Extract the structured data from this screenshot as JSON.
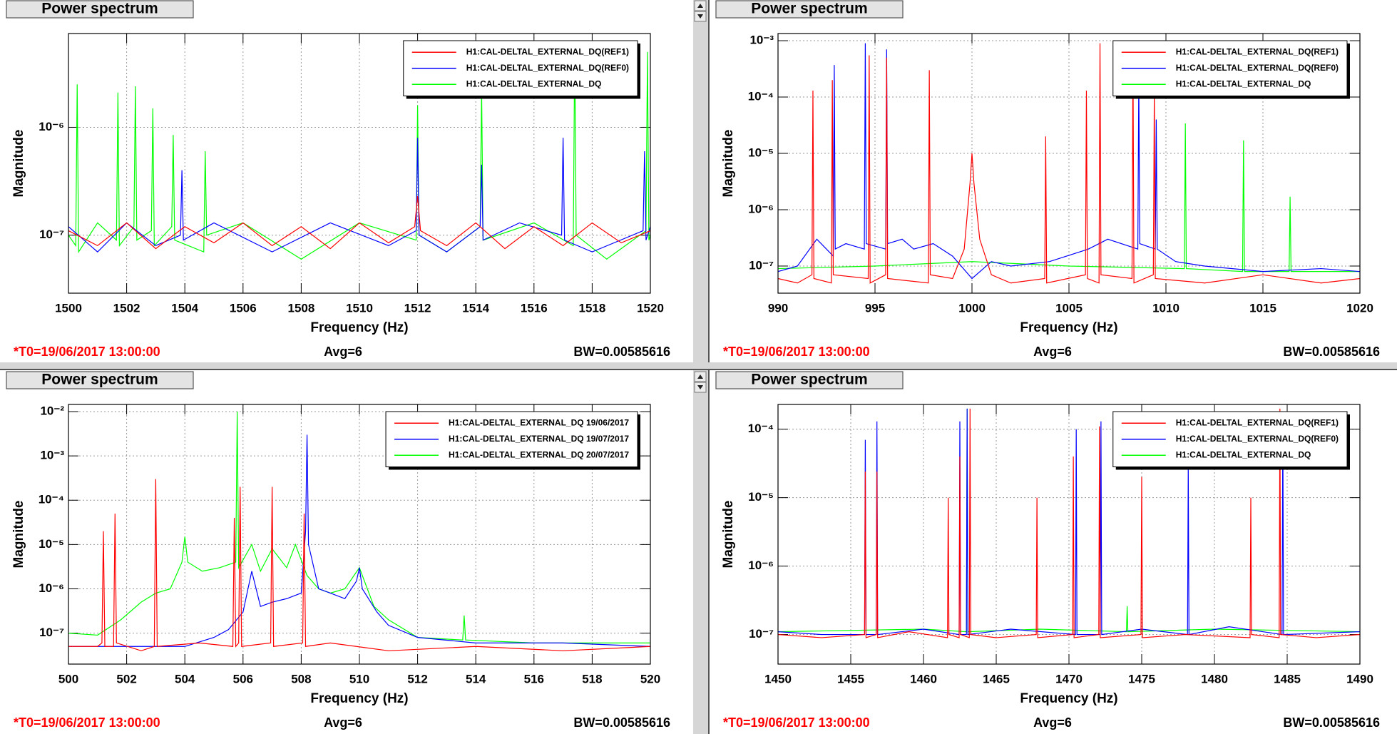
{
  "chart_data": [
    {
      "type": "line",
      "panel_title": "Power spectrum",
      "xlabel": "Frequency (Hz)",
      "ylabel": "Magnitude",
      "xlim": [
        1500,
        1520
      ],
      "xticks": [
        1500,
        1502,
        1504,
        1506,
        1508,
        1510,
        1512,
        1514,
        1516,
        1518,
        1520
      ],
      "ylim": [
        2.9e-08,
        7.4e-06
      ],
      "log_y": true,
      "yticks": [
        {
          "value": 1e-07,
          "label": "10⁻⁷"
        },
        {
          "value": 1e-06,
          "label": "10⁻⁶"
        }
      ],
      "grid": true,
      "legend": "upper right",
      "series": [
        {
          "name": "H1:CAL-DELTAL_EXTERNAL_DQ(REF1)",
          "color": "#ff0000",
          "x": [
            1500,
            1501,
            1502,
            1503,
            1504,
            1505,
            1506,
            1507,
            1508,
            1509,
            1510,
            1511,
            1511.9,
            1512,
            1512.1,
            1513,
            1514,
            1515,
            1516,
            1517,
            1518,
            1519,
            1520
          ],
          "values": [
            1.1e-07,
            8e-08,
            1.3e-07,
            7.5e-08,
            1.2e-07,
            8.5e-08,
            1.3e-07,
            8e-08,
            1.2e-07,
            7.5e-08,
            1.3e-07,
            8.5e-08,
            1.2e-07,
            2.3e-07,
            1.1e-07,
            8e-08,
            1.3e-07,
            7.5e-08,
            1.2e-07,
            8e-08,
            1.3e-07,
            8.5e-08,
            1.1e-07
          ]
        },
        {
          "name": "H1:CAL-DELTAL_EXTERNAL_DQ(REF0)",
          "color": "#0000ff",
          "x": [
            1500,
            1501,
            1502,
            1503,
            1503.85,
            1503.9,
            1503.95,
            1505,
            1507,
            1509,
            1511,
            1511.95,
            1512,
            1512.05,
            1513,
            1514.15,
            1514.2,
            1514.25,
            1515.5,
            1516.95,
            1517,
            1517.05,
            1518,
            1519.75,
            1519.8,
            1519.85,
            1520
          ],
          "values": [
            1.2e-07,
            7e-08,
            1.3e-07,
            8e-08,
            1e-07,
            4e-07,
            9e-08,
            1.3e-07,
            7e-08,
            1.3e-07,
            8e-08,
            1.1e-07,
            8e-07,
            1e-07,
            7e-08,
            1.2e-07,
            4.5e-07,
            9e-08,
            1.3e-07,
            1e-07,
            8e-07,
            9e-08,
            7e-08,
            1.1e-07,
            6e-07,
            9e-08,
            1.2e-07
          ]
        },
        {
          "name": "H1:CAL-DELTAL_EXTERNAL_DQ",
          "color": "#00ff00",
          "x": [
            1500,
            1500.25,
            1500.3,
            1500.35,
            1501,
            1501.65,
            1501.7,
            1501.75,
            1502.25,
            1502.3,
            1502.35,
            1502.85,
            1502.9,
            1502.95,
            1503.55,
            1503.6,
            1503.65,
            1504.65,
            1504.7,
            1504.75,
            1506,
            1508,
            1510,
            1511.95,
            1512,
            1512.05,
            1513,
            1514.15,
            1514.2,
            1514.25,
            1516,
            1517.35,
            1517.4,
            1517.45,
            1518.5,
            1519.85,
            1519.9,
            1519.95,
            1520
          ],
          "values": [
            1e-07,
            8e-08,
            2.5e-06,
            7e-08,
            1.3e-07,
            9e-08,
            2.1e-06,
            8e-08,
            1.2e-07,
            2.4e-06,
            9e-08,
            1.1e-07,
            1.5e-06,
            8e-08,
            1.2e-07,
            8.5e-07,
            9e-08,
            7e-08,
            6e-07,
            1e-07,
            1.3e-07,
            6e-08,
            1.3e-07,
            9e-08,
            1.6e-06,
            1e-07,
            7e-08,
            1.2e-07,
            2.3e-06,
            9e-08,
            1.3e-07,
            8e-08,
            6e-06,
            1e-07,
            6e-08,
            1.1e-07,
            5e-06,
            9e-08,
            1e-07
          ]
        }
      ],
      "t0": "*T0=19/06/2017 13:00:00",
      "avg": "Avg=6",
      "bw": "BW=0.00585616"
    },
    {
      "type": "line",
      "panel_title": "Power spectrum",
      "xlabel": "Frequency (Hz)",
      "ylabel": "Magnitude",
      "xlim": [
        990,
        1020
      ],
      "xticks": [
        990,
        995,
        1000,
        1005,
        1010,
        1015,
        1020
      ],
      "ylim": [
        3.3e-08,
        0.00134
      ],
      "log_y": true,
      "yticks": [
        {
          "value": 1e-07,
          "label": "10⁻⁷"
        },
        {
          "value": 1e-06,
          "label": "10⁻⁶"
        },
        {
          "value": 1e-05,
          "label": "10⁻⁵"
        },
        {
          "value": 0.0001,
          "label": "10⁻⁴"
        },
        {
          "value": 0.001,
          "label": "10⁻³"
        }
      ],
      "grid": true,
      "legend": "upper right",
      "series": [
        {
          "name": "H1:CAL-DELTAL_EXTERNAL_DQ(REF1)",
          "color": "#ff0000",
          "x": [
            990,
            991,
            991.75,
            991.8,
            991.85,
            992.75,
            992.8,
            992.85,
            994.65,
            994.7,
            994.75,
            995.55,
            995.6,
            995.65,
            997.75,
            997.8,
            997.85,
            999,
            999.6,
            999.9,
            1000,
            1000.1,
            1000.4,
            1001,
            1002,
            1003.75,
            1003.8,
            1003.85,
            1005.85,
            1005.9,
            1005.95,
            1006.55,
            1006.6,
            1006.65,
            1008.25,
            1008.3,
            1008.35,
            1009.35,
            1009.4,
            1009.45,
            1012,
            1015,
            1018,
            1020
          ],
          "values": [
            6e-08,
            5e-08,
            7e-08,
            0.00013,
            6e-08,
            5e-08,
            0.0002,
            7e-08,
            6e-08,
            0.00055,
            5e-08,
            7e-08,
            0.0005,
            6e-08,
            5e-08,
            0.0003,
            7e-08,
            6e-08,
            2e-07,
            3e-06,
            1e-05,
            3e-06,
            3e-07,
            7e-08,
            5e-08,
            6e-08,
            2e-05,
            5e-08,
            7e-08,
            0.00013,
            6e-08,
            5e-08,
            0.0009,
            7e-08,
            6e-08,
            0.0006,
            5e-08,
            7e-08,
            0.00012,
            6e-08,
            5e-08,
            7e-08,
            5e-08,
            6e-08
          ]
        },
        {
          "name": "H1:CAL-DELTAL_EXTERNAL_DQ(REF0)",
          "color": "#0000ff",
          "x": [
            990,
            991,
            992,
            992.85,
            992.9,
            992.95,
            993.5,
            994.45,
            994.5,
            994.55,
            995.55,
            995.6,
            995.65,
            996.4,
            997,
            998,
            999,
            1000,
            1001,
            1002,
            1004,
            1006,
            1007,
            1008.55,
            1008.6,
            1008.65,
            1009.45,
            1009.5,
            1009.55,
            1010.5,
            1012,
            1015,
            1018,
            1020
          ],
          "values": [
            8e-08,
            1e-07,
            3e-07,
            1.5e-07,
            0.00037,
            2e-07,
            2.5e-07,
            2e-07,
            0.0009,
            2.5e-07,
            2e-07,
            0.0007,
            2.5e-07,
            3e-07,
            2e-07,
            2.5e-07,
            1.5e-07,
            6e-08,
            1.2e-07,
            1e-07,
            1.2e-07,
            2e-07,
            3e-07,
            2e-07,
            0.0002,
            2.5e-07,
            2e-07,
            4e-05,
            2e-07,
            1.2e-07,
            1e-07,
            8e-08,
            9e-08,
            8e-08
          ]
        },
        {
          "name": "H1:CAL-DELTAL_EXTERNAL_DQ",
          "color": "#00ff00",
          "x": [
            990,
            995,
            1000,
            1005,
            1010.95,
            1011,
            1011.05,
            1013.95,
            1014,
            1014.05,
            1016.35,
            1016.4,
            1016.45,
            1020
          ],
          "values": [
            9e-08,
            1e-07,
            1.2e-07,
            1e-07,
            9e-08,
            3.4e-05,
            9e-08,
            8e-08,
            1.7e-05,
            8e-08,
            8e-08,
            1.7e-06,
            8e-08,
            8e-08
          ]
        }
      ],
      "t0": "*T0=19/06/2017 13:00:00",
      "avg": "Avg=6",
      "bw": "BW=0.00585616"
    },
    {
      "type": "line",
      "panel_title": "Power spectrum",
      "xlabel": "Frequency (Hz)",
      "ylabel": "Magnitude",
      "xlim": [
        500,
        520
      ],
      "xticks": [
        500,
        502,
        504,
        506,
        508,
        510,
        512,
        514,
        516,
        518,
        520
      ],
      "ylim": [
        2e-08,
        0.0145
      ],
      "log_y": true,
      "yticks": [
        {
          "value": 1e-07,
          "label": "10⁻⁷"
        },
        {
          "value": 1e-06,
          "label": "10⁻⁶"
        },
        {
          "value": 1e-05,
          "label": "10⁻⁵"
        },
        {
          "value": 0.0001,
          "label": "10⁻⁴"
        },
        {
          "value": 0.001,
          "label": "10⁻³"
        },
        {
          "value": 0.01,
          "label": "10⁻²"
        }
      ],
      "grid": true,
      "legend": "upper right",
      "series": [
        {
          "name": "H1:CAL-DELTAL_EXTERNAL_DQ 19/06/2017",
          "color": "#ff0000",
          "x": [
            500,
            501,
            501.15,
            501.2,
            501.25,
            501.55,
            501.6,
            501.65,
            502.5,
            502.95,
            503,
            503.05,
            504.5,
            505.65,
            505.7,
            505.75,
            505.85,
            505.9,
            505.95,
            506.95,
            507,
            507.05,
            508.05,
            508.1,
            508.15,
            509,
            511,
            514,
            517,
            520
          ],
          "values": [
            5e-08,
            5e-08,
            6e-08,
            2e-05,
            5e-08,
            5e-08,
            5e-05,
            6e-08,
            4e-08,
            5e-08,
            0.0003,
            5e-08,
            6e-08,
            5e-08,
            4e-05,
            5e-08,
            6e-08,
            0.0002,
            5e-08,
            6e-08,
            0.0002,
            5e-08,
            6e-08,
            5e-05,
            5e-08,
            6e-08,
            4e-08,
            5e-08,
            4e-08,
            5e-08
          ]
        },
        {
          "name": "H1:CAL-DELTAL_EXTERNAL_DQ 19/07/2017",
          "color": "#0000ff",
          "x": [
            500,
            502,
            504,
            505,
            505.5,
            506,
            506.3,
            506.6,
            507,
            507.5,
            508,
            508.15,
            508.2,
            508.25,
            508.6,
            509,
            509.5,
            509.9,
            510,
            510.1,
            510.6,
            511,
            512,
            514,
            517,
            520
          ],
          "values": [
            5e-08,
            5e-08,
            5e-08,
            8e-08,
            1.2e-07,
            3e-07,
            2.5e-06,
            4e-07,
            5e-07,
            6e-07,
            8e-07,
            2e-05,
            0.003,
            1e-05,
            1e-06,
            8e-07,
            6e-07,
            1.5e-06,
            3e-06,
            1e-06,
            3e-07,
            1.5e-07,
            8e-08,
            6e-08,
            6e-08,
            5e-08
          ]
        },
        {
          "name": "H1:CAL-DELTAL_EXTERNAL_DQ 20/07/2017",
          "color": "#00ff00",
          "x": [
            500,
            501,
            501.8,
            502.5,
            503,
            503.5,
            503.9,
            504,
            504.1,
            504.6,
            505.2,
            505.75,
            505.8,
            505.85,
            506.3,
            506.6,
            507,
            507.5,
            507.8,
            508.2,
            508.6,
            509,
            509.5,
            510,
            510.5,
            511,
            512,
            513.55,
            513.6,
            513.65,
            516,
            520
          ],
          "values": [
            1e-07,
            9e-08,
            2e-07,
            5e-07,
            8e-07,
            1e-06,
            4e-06,
            1.5e-05,
            4e-06,
            2.5e-06,
            3e-06,
            4e-06,
            0.01,
            3e-06,
            1e-05,
            2.5e-06,
            8e-06,
            3e-06,
            1e-05,
            2e-06,
            1e-06,
            8e-07,
            1e-06,
            3e-06,
            4e-07,
            2e-07,
            8e-08,
            7e-08,
            2.5e-07,
            7e-08,
            6e-08,
            6e-08
          ]
        }
      ],
      "t0": "*T0=19/06/2017 13:00:00",
      "avg": "Avg=6",
      "bw": "BW=0.00585616"
    },
    {
      "type": "line",
      "panel_title": "Power spectrum",
      "xlabel": "Frequency (Hz)",
      "ylabel": "Magnitude",
      "xlim": [
        1450,
        1490
      ],
      "xticks": [
        1450,
        1455,
        1460,
        1465,
        1470,
        1475,
        1480,
        1485,
        1490
      ],
      "ylim": [
        3.7e-08,
        0.00023
      ],
      "log_y": true,
      "yticks": [
        {
          "value": 1e-07,
          "label": "10⁻⁷"
        },
        {
          "value": 1e-06,
          "label": "10⁻⁶"
        },
        {
          "value": 1e-05,
          "label": "10⁻⁵"
        },
        {
          "value": 0.0001,
          "label": "10⁻⁴"
        }
      ],
      "grid": true,
      "legend": "upper right",
      "series": [
        {
          "name": "H1:CAL-DELTAL_EXTERNAL_DQ(REF1)",
          "color": "#ff0000",
          "x": [
            1450,
            1453,
            1455.95,
            1456,
            1456.05,
            1456.75,
            1456.8,
            1456.85,
            1459,
            1461.65,
            1461.7,
            1461.75,
            1462.45,
            1462.5,
            1462.55,
            1463.15,
            1463.2,
            1463.25,
            1465,
            1467.75,
            1467.8,
            1467.85,
            1470.25,
            1470.3,
            1470.35,
            1472.05,
            1472.1,
            1472.15,
            1474.95,
            1475,
            1475.05,
            1478,
            1482.45,
            1482.5,
            1482.55,
            1484.45,
            1484.5,
            1484.55,
            1487,
            1490
          ],
          "values": [
            1e-07,
            9e-08,
            1e-07,
            2.4e-05,
            9e-08,
            1e-07,
            2.4e-05,
            9e-08,
            1.1e-07,
            9e-08,
            1e-05,
            1e-07,
            9e-08,
            4e-05,
            1e-07,
            9e-08,
            0.0002,
            1e-07,
            9e-08,
            1e-07,
            1e-05,
            9e-08,
            1e-07,
            4e-05,
            9e-08,
            1e-07,
            0.00011,
            9e-08,
            1e-07,
            2e-05,
            9e-08,
            1e-07,
            9e-08,
            1e-05,
            1e-07,
            9e-08,
            0.0002,
            1e-07,
            9e-08,
            1e-07
          ]
        },
        {
          "name": "H1:CAL-DELTAL_EXTERNAL_DQ(REF0)",
          "color": "#0000ff",
          "x": [
            1450,
            1453,
            1455.95,
            1456,
            1456.05,
            1456.75,
            1456.8,
            1456.85,
            1460,
            1462.45,
            1462.5,
            1462.55,
            1462.95,
            1463,
            1463.05,
            1466,
            1470.45,
            1470.5,
            1470.55,
            1472.15,
            1472.2,
            1472.25,
            1475,
            1478.15,
            1478.2,
            1478.25,
            1481,
            1484.65,
            1484.7,
            1484.75,
            1490
          ],
          "values": [
            1.1e-07,
            1e-07,
            1e-07,
            7e-05,
            1e-07,
            1e-07,
            0.00013,
            1e-07,
            1.2e-07,
            1e-07,
            0.00013,
            1e-07,
            1e-07,
            0.0002,
            1e-07,
            1.2e-07,
            1e-07,
            0.0001,
            1e-07,
            1e-07,
            0.00013,
            1e-07,
            1.2e-07,
            1e-07,
            3e-05,
            1e-07,
            1.3e-07,
            1e-07,
            0.00013,
            1e-07,
            1.1e-07
          ]
        },
        {
          "name": "H1:CAL-DELTAL_EXTERNAL_DQ",
          "color": "#00ff00",
          "x": [
            1450,
            1460,
            1462.95,
            1463,
            1463.05,
            1468,
            1473.95,
            1474,
            1474.05,
            1480,
            1490
          ],
          "values": [
            1.1e-07,
            1.2e-07,
            1.1e-07,
            0.0002,
            1.1e-07,
            1.2e-07,
            1.1e-07,
            2.6e-07,
            1.1e-07,
            1.2e-07,
            1.1e-07
          ]
        }
      ],
      "t0": "*T0=19/06/2017 13:00:00",
      "avg": "Avg=6",
      "bw": "BW=0.00585616"
    }
  ]
}
